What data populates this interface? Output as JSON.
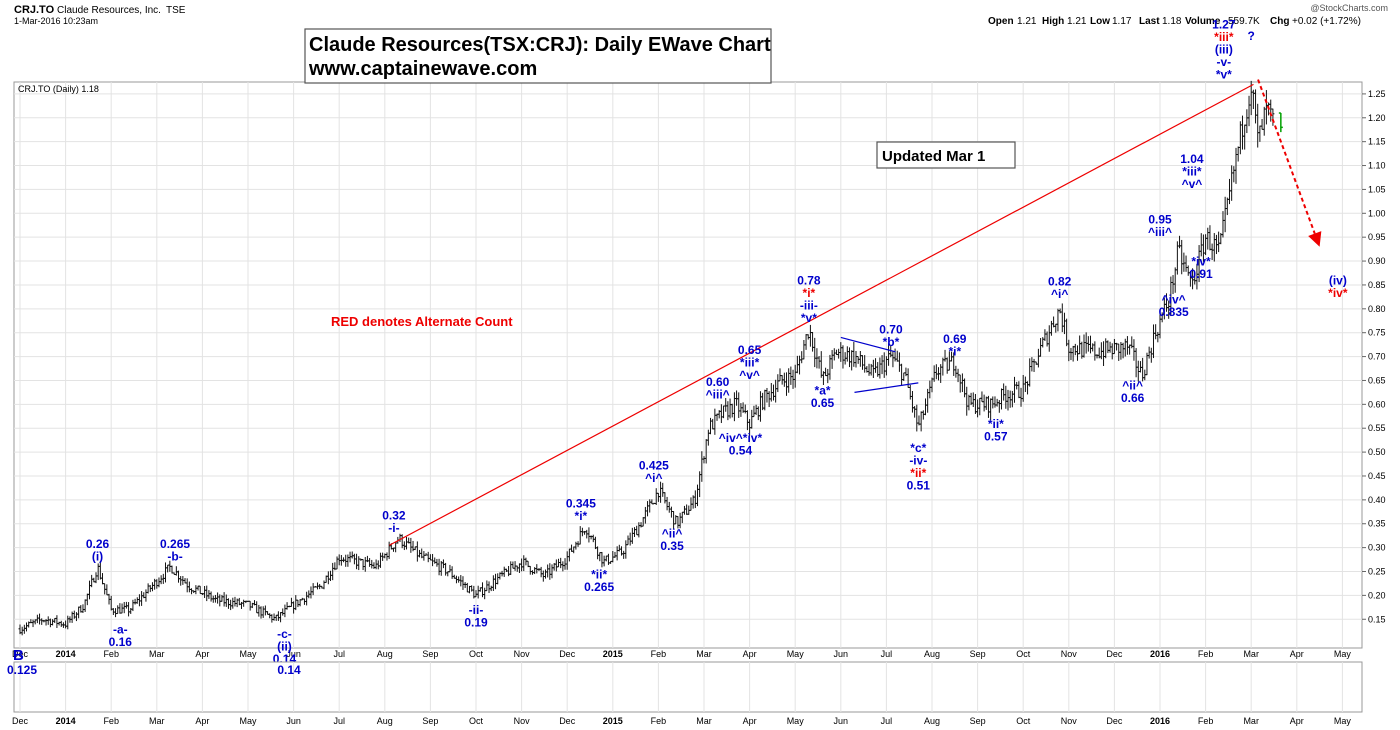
{
  "header": {
    "symbol": "CRJ.TO",
    "company": "Claude Resources, Inc.",
    "exchange": "TSE",
    "datetime": "1-Mar-2016 10:23am",
    "watermark": "@StockCharts.com",
    "legend": "CRJ.TO (Daily) 1.18",
    "ohlc": [
      {
        "label": "Open",
        "value": "1.21"
      },
      {
        "label": "High",
        "value": "1.21"
      },
      {
        "label": "Low",
        "value": "1.17"
      },
      {
        "label": "Last",
        "value": "1.18"
      },
      {
        "label": "Volume",
        "value": "559.7K"
      },
      {
        "label": "Chg",
        "value": "+0.02 (+1.72%)"
      }
    ]
  },
  "title": {
    "line1": "Claude Resources(TSX:CRJ): Daily EWave Chart",
    "line2": "www.captainewave.com"
  },
  "updated_note": "Updated Mar 1",
  "alternate_note": "RED denotes Alternate Count",
  "lower_panel_marker": "B",
  "colors": {
    "blue": "#0000cc",
    "red": "#ee0000",
    "bar": "#111111",
    "last_bar": "#00a000",
    "grid": "#e3e3e3"
  },
  "chart_data": {
    "type": "line",
    "title": "Claude Resources(TSX:CRJ): Daily EWave Chart",
    "series_name": "CRJ.TO (Daily)",
    "x_unit": "months since 1-Dec-2013",
    "xlim": [
      0,
      29.7
    ],
    "ylim": [
      0.12,
      1.295
    ],
    "y_ticks": [
      "0.15",
      "0.20",
      "0.25",
      "0.30",
      "0.35",
      "0.40",
      "0.45",
      "0.50",
      "0.55",
      "0.60",
      "0.65",
      "0.70",
      "0.75",
      "0.80",
      "0.85",
      "0.90",
      "0.95",
      "1.00",
      "1.05",
      "1.10",
      "1.15",
      "1.20",
      "1.25"
    ],
    "x_ticks": [
      {
        "t": 0,
        "label": "Dec"
      },
      {
        "t": 1,
        "label": "2014",
        "bold": true
      },
      {
        "t": 2,
        "label": "Feb"
      },
      {
        "t": 3,
        "label": "Mar"
      },
      {
        "t": 4,
        "label": "Apr"
      },
      {
        "t": 5,
        "label": "May"
      },
      {
        "t": 6,
        "label": "Jun"
      },
      {
        "t": 7,
        "label": "Jul"
      },
      {
        "t": 8,
        "label": "Aug"
      },
      {
        "t": 9,
        "label": "Sep"
      },
      {
        "t": 10,
        "label": "Oct"
      },
      {
        "t": 11,
        "label": "Nov"
      },
      {
        "t": 12,
        "label": "Dec"
      },
      {
        "t": 13,
        "label": "2015",
        "bold": true
      },
      {
        "t": 14,
        "label": "Feb"
      },
      {
        "t": 15,
        "label": "Mar"
      },
      {
        "t": 16,
        "label": "Apr"
      },
      {
        "t": 17,
        "label": "May"
      },
      {
        "t": 18,
        "label": "Jun"
      },
      {
        "t": 19,
        "label": "Jul"
      },
      {
        "t": 20,
        "label": "Aug"
      },
      {
        "t": 21,
        "label": "Sep"
      },
      {
        "t": 22,
        "label": "Oct"
      },
      {
        "t": 23,
        "label": "Nov"
      },
      {
        "t": 24,
        "label": "Dec"
      },
      {
        "t": 25,
        "label": "2016",
        "bold": true
      },
      {
        "t": 26,
        "label": "Feb"
      },
      {
        "t": 27,
        "label": "Mar"
      },
      {
        "t": 28,
        "label": "Apr"
      },
      {
        "t": 29,
        "label": "May"
      }
    ],
    "price_path": [
      [
        0,
        0.13
      ],
      [
        0.5,
        0.15
      ],
      [
        1.0,
        0.14
      ],
      [
        1.4,
        0.18
      ],
      [
        1.7,
        0.26
      ],
      [
        2.0,
        0.17
      ],
      [
        2.4,
        0.17
      ],
      [
        2.8,
        0.21
      ],
      [
        3.3,
        0.26
      ],
      [
        3.7,
        0.22
      ],
      [
        4.3,
        0.19
      ],
      [
        5.0,
        0.18
      ],
      [
        5.6,
        0.15
      ],
      [
        6.0,
        0.18
      ],
      [
        6.6,
        0.22
      ],
      [
        7.0,
        0.28
      ],
      [
        7.8,
        0.26
      ],
      [
        8.3,
        0.32
      ],
      [
        8.8,
        0.28
      ],
      [
        9.4,
        0.25
      ],
      [
        10.0,
        0.2
      ],
      [
        10.4,
        0.23
      ],
      [
        11.0,
        0.27
      ],
      [
        11.5,
        0.24
      ],
      [
        12.0,
        0.28
      ],
      [
        12.4,
        0.345
      ],
      [
        12.8,
        0.27
      ],
      [
        13.2,
        0.29
      ],
      [
        13.6,
        0.35
      ],
      [
        14.0,
        0.42
      ],
      [
        14.4,
        0.35
      ],
      [
        14.8,
        0.4
      ],
      [
        15.1,
        0.55
      ],
      [
        15.4,
        0.58
      ],
      [
        15.7,
        0.6
      ],
      [
        16.0,
        0.56
      ],
      [
        16.3,
        0.61
      ],
      [
        16.7,
        0.65
      ],
      [
        17.0,
        0.66
      ],
      [
        17.3,
        0.76
      ],
      [
        17.6,
        0.65
      ],
      [
        17.9,
        0.71
      ],
      [
        18.3,
        0.7
      ],
      [
        18.7,
        0.66
      ],
      [
        19.1,
        0.7
      ],
      [
        19.4,
        0.66
      ],
      [
        19.7,
        0.55
      ],
      [
        20.1,
        0.67
      ],
      [
        20.5,
        0.69
      ],
      [
        20.8,
        0.6
      ],
      [
        21.3,
        0.6
      ],
      [
        21.6,
        0.62
      ],
      [
        22.0,
        0.63
      ],
      [
        22.4,
        0.72
      ],
      [
        22.8,
        0.8
      ],
      [
        23.0,
        0.72
      ],
      [
        23.6,
        0.71
      ],
      [
        24.3,
        0.72
      ],
      [
        24.6,
        0.66
      ],
      [
        24.9,
        0.75
      ],
      [
        25.2,
        0.82
      ],
      [
        25.4,
        0.92
      ],
      [
        25.7,
        0.85
      ],
      [
        26.0,
        0.95
      ],
      [
        26.3,
        0.92
      ],
      [
        26.6,
        1.08
      ],
      [
        26.8,
        1.18
      ],
      [
        27.0,
        1.27
      ],
      [
        27.15,
        1.15
      ],
      [
        27.35,
        1.22
      ],
      [
        27.5,
        1.18
      ]
    ],
    "last_bar": {
      "t": 27.65,
      "open": 1.21,
      "high": 1.21,
      "low": 1.17,
      "close": 1.18
    },
    "trendline": {
      "from": [
        8.1,
        0.305
      ],
      "to": [
        27.05,
        1.27
      ]
    },
    "triangle_lines": [
      {
        "from": [
          18.0,
          0.74
        ],
        "to": [
          19.2,
          0.71
        ]
      },
      {
        "from": [
          18.3,
          0.625
        ],
        "to": [
          19.7,
          0.645
        ]
      }
    ],
    "forecast_arrow": {
      "from": [
        27.15,
        1.28
      ],
      "to": [
        28.5,
        0.93
      ]
    },
    "annotations": [
      {
        "t": 1.7,
        "p": 0.26,
        "dir": "up",
        "lines": [
          [
            "0.26",
            "b"
          ],
          [
            "(i)",
            "b"
          ]
        ]
      },
      {
        "t": 2.2,
        "p": 0.15,
        "dir": "down",
        "lines": [
          [
            "-a-",
            "b"
          ],
          [
            "0.16",
            "b"
          ]
        ]
      },
      {
        "t": 3.4,
        "p": 0.26,
        "dir": "up",
        "lines": [
          [
            "0.265",
            "b"
          ],
          [
            "-b-",
            "b"
          ]
        ]
      },
      {
        "t": 5.8,
        "p": 0.14,
        "dir": "down",
        "lines": [
          [
            "-c-",
            "b"
          ],
          [
            "(ii)",
            "b"
          ],
          [
            "0.14",
            "b"
          ]
        ]
      },
      {
        "t": 8.2,
        "p": 0.32,
        "dir": "up",
        "lines": [
          [
            "0.32",
            "b"
          ],
          [
            "-i-",
            "b"
          ]
        ]
      },
      {
        "t": 10.0,
        "p": 0.19,
        "dir": "down",
        "lines": [
          [
            "-ii-",
            "b"
          ],
          [
            "0.19",
            "b"
          ]
        ]
      },
      {
        "t": 12.3,
        "p": 0.345,
        "dir": "up",
        "lines": [
          [
            "0.345",
            "b"
          ],
          [
            "*i*",
            "b"
          ]
        ]
      },
      {
        "t": 12.7,
        "p": 0.265,
        "dir": "down",
        "lines": [
          [
            "*ii*",
            "b"
          ],
          [
            "0.265",
            "b"
          ]
        ]
      },
      {
        "t": 13.9,
        "p": 0.425,
        "dir": "up",
        "lines": [
          [
            "0.425",
            "b"
          ],
          [
            "^i^",
            "b"
          ]
        ]
      },
      {
        "t": 14.3,
        "p": 0.35,
        "dir": "down",
        "lines": [
          [
            "^ii^",
            "b"
          ],
          [
            "0.35",
            "b"
          ]
        ]
      },
      {
        "t": 15.3,
        "p": 0.6,
        "dir": "up",
        "lines": [
          [
            "0.60",
            "b"
          ],
          [
            "^iii^",
            "b"
          ]
        ]
      },
      {
        "t": 16.0,
        "p": 0.64,
        "dir": "up",
        "lines": [
          [
            "0.65",
            "b"
          ],
          [
            "*iii*",
            "b"
          ],
          [
            "^v^",
            "b"
          ]
        ]
      },
      {
        "t": 15.8,
        "p": 0.55,
        "dir": "down",
        "lines": [
          [
            "^iv^*iv*",
            "b"
          ],
          [
            "0.54",
            "b"
          ]
        ]
      },
      {
        "t": 17.3,
        "p": 0.76,
        "dir": "up",
        "lines": [
          [
            "0.78",
            "b"
          ],
          [
            "*i*",
            "r"
          ],
          [
            "-iii-",
            "b"
          ],
          [
            "*v*",
            "b"
          ]
        ]
      },
      {
        "t": 17.6,
        "p": 0.65,
        "dir": "down",
        "lines": [
          [
            "*a*",
            "b"
          ],
          [
            "0.65",
            "b"
          ]
        ]
      },
      {
        "t": 19.1,
        "p": 0.71,
        "dir": "up",
        "lines": [
          [
            "0.70",
            "b"
          ],
          [
            "*b*",
            "b"
          ]
        ]
      },
      {
        "t": 19.7,
        "p": 0.53,
        "dir": "down",
        "lines": [
          [
            "*c*",
            "b"
          ],
          [
            "-iv-",
            "b"
          ],
          [
            "*ii*",
            "r"
          ],
          [
            "0.51",
            "b"
          ]
        ]
      },
      {
        "t": 20.5,
        "p": 0.69,
        "dir": "up",
        "lines": [
          [
            "0.69",
            "b"
          ],
          [
            "*i*",
            "b"
          ]
        ]
      },
      {
        "t": 21.4,
        "p": 0.58,
        "dir": "down",
        "lines": [
          [
            "*ii*",
            "b"
          ],
          [
            "0.57",
            "b"
          ]
        ]
      },
      {
        "t": 22.8,
        "p": 0.81,
        "dir": "up",
        "lines": [
          [
            "0.82",
            "b"
          ],
          [
            "^i^",
            "b"
          ]
        ]
      },
      {
        "t": 24.4,
        "p": 0.66,
        "dir": "down",
        "lines": [
          [
            "^ii^",
            "b"
          ],
          [
            "0.66",
            "b"
          ]
        ]
      },
      {
        "t": 25.0,
        "p": 0.94,
        "dir": "up",
        "lines": [
          [
            "0.95",
            "b"
          ],
          [
            "^iii^",
            "b"
          ]
        ]
      },
      {
        "t": 25.3,
        "p": 0.84,
        "dir": "down",
        "lines": [
          [
            "^iv^",
            "b"
          ],
          [
            "0.835",
            "b"
          ]
        ]
      },
      {
        "t": 25.7,
        "p": 1.04,
        "dir": "up",
        "lines": [
          [
            "1.04",
            "b"
          ],
          [
            "*iii*",
            "b"
          ],
          [
            "^v^",
            "b"
          ]
        ]
      },
      {
        "t": 25.9,
        "p": 0.92,
        "dir": "down",
        "lines": [
          [
            "*iv*",
            "b"
          ],
          [
            "0.91",
            "b"
          ]
        ]
      },
      {
        "t": 26.4,
        "p": 1.27,
        "dir": "up",
        "lines": [
          [
            "1.27",
            "b"
          ],
          [
            "*iii*",
            "r"
          ],
          [
            "(iii)",
            "b"
          ],
          [
            "-v-",
            "b"
          ],
          [
            "*v*",
            "b"
          ]
        ]
      },
      {
        "t": 27.0,
        "p": 1.35,
        "dir": "up",
        "lines": [
          [
            "?",
            "b"
          ]
        ]
      },
      {
        "t": 28.9,
        "p": 0.88,
        "dir": "down",
        "lines": [
          [
            "(iv)",
            "b"
          ],
          [
            "*iv*",
            "r"
          ]
        ]
      }
    ],
    "lower_panel_labels": [
      {
        "t": 0.0,
        "text": "0.125"
      },
      {
        "t": 5.9,
        "text": "0.14"
      }
    ],
    "alternate_count_note": "RED denotes Alternate Count"
  }
}
